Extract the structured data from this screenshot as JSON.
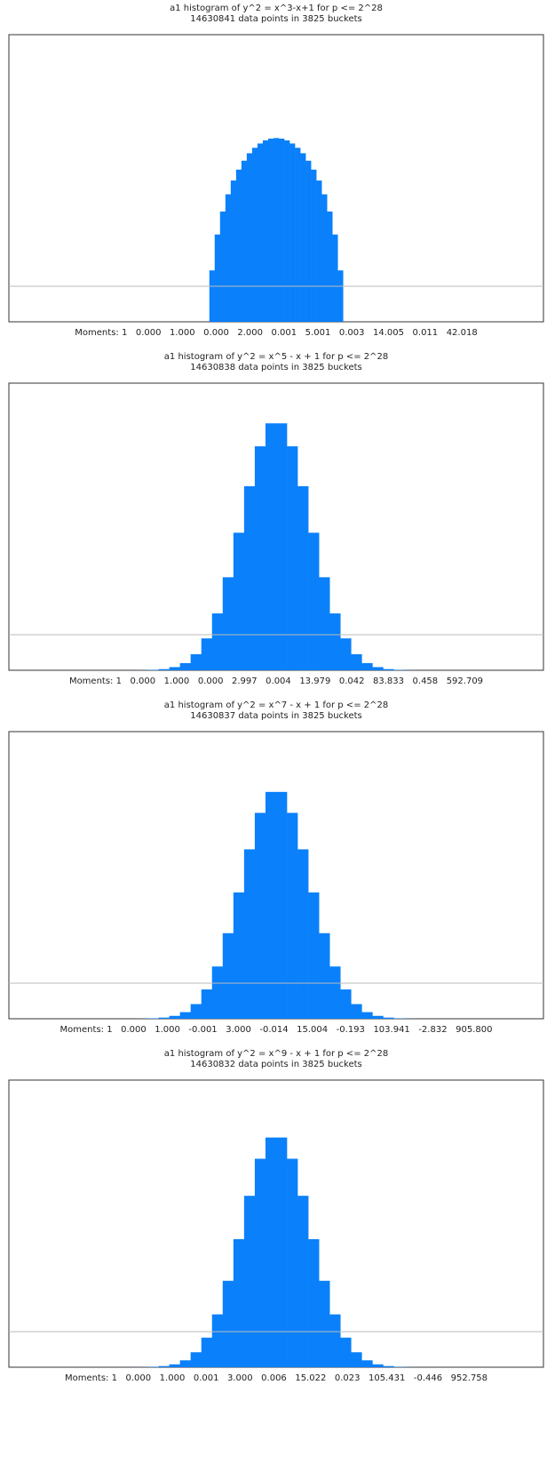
{
  "chart_data": [
    {
      "type": "histogram",
      "title": "a1 histogram of y^2 = x^3-x+1 for p <= 2^28",
      "subtitle": "14630841 data points in 3825 buckets",
      "moments": "Moments: 1   0.000   1.000   0.000   2.000   0.001   5.001   0.003   14.005   0.011   42.018",
      "bins": [
        37.5,
        38.5,
        39.5,
        40.5,
        41.5,
        42.5,
        43.5,
        44.5,
        45.5,
        46.5,
        47.5,
        48.5,
        49.5,
        50.5,
        51.5,
        52.5,
        53.5,
        54.5,
        55.5,
        56.5,
        57.5,
        58.5,
        59.5,
        60.5,
        61.5,
        62.5
      ],
      "values": [
        17.9,
        30.4,
        38.4,
        44.4,
        49.2,
        53.0,
        56.1,
        58.7,
        60.6,
        62.1,
        63.2,
        63.8,
        64,
        63.8,
        63.2,
        62.1,
        60.6,
        58.7,
        56.1,
        53.0,
        49.2,
        44.4,
        38.4,
        30.4,
        17.9
      ],
      "color": "#0a80fb",
      "xlim": [
        0,
        100
      ],
      "ylim": [
        0,
        100
      ],
      "hline": 12.4
    },
    {
      "type": "histogram",
      "title": "a1 histogram of y^2 = x^5 - x + 1 for p <= 2^28",
      "subtitle": "14630838 data points in 3825 buckets",
      "moments": "Moments: 1   0.000   1.000   0.000   2.997   0.004   13.979   0.042   83.833   0.458   592.709",
      "bins": [
        24,
        26,
        28,
        30,
        32,
        34,
        36,
        38,
        40,
        42,
        44,
        46,
        48,
        50,
        52,
        54,
        56,
        58,
        60,
        62,
        64,
        66,
        68,
        70,
        72,
        74,
        76
      ],
      "values": [
        0.04,
        0.14,
        0.4,
        1.1,
        2.5,
        5.6,
        11.1,
        19.8,
        32.4,
        47.9,
        64.1,
        78,
        86,
        86,
        78,
        64.1,
        47.9,
        32.4,
        19.8,
        11.1,
        5.6,
        2.5,
        1.1,
        0.4,
        0.14,
        0.04
      ],
      "color": "#0a80fb",
      "xlim": [
        0,
        100
      ],
      "ylim": [
        0,
        100
      ],
      "hline": 12.4
    },
    {
      "type": "histogram",
      "title": "a1 histogram of y^2 = x^7 - x + 1 for p <= 2^28",
      "subtitle": "14630837 data points in 3825 buckets",
      "moments": "Moments: 1   0.000   1.000   -0.001   3.000   -0.014   15.004   -0.193   103.941   -2.832   905.800",
      "bins": [
        24,
        26,
        28,
        30,
        32,
        34,
        36,
        38,
        40,
        42,
        44,
        46,
        48,
        50,
        52,
        54,
        56,
        58,
        60,
        62,
        64,
        66,
        68,
        70,
        72,
        74,
        76
      ],
      "values": [
        0.04,
        0.13,
        0.4,
        1.0,
        2.3,
        5.1,
        10.2,
        18.2,
        29.8,
        44.0,
        59.0,
        71.7,
        79,
        79,
        71.7,
        59.0,
        44.0,
        29.8,
        18.2,
        10.2,
        5.1,
        2.3,
        1.0,
        0.4,
        0.13,
        0.04
      ],
      "color": "#0a80fb",
      "xlim": [
        0,
        100
      ],
      "ylim": [
        0,
        100
      ],
      "hline": 12.4
    },
    {
      "type": "histogram",
      "title": "a1 histogram of y^2 = x^9 - x + 1 for p <= 2^28",
      "subtitle": "14630832 data points in 3825 buckets",
      "moments": "Moments: 1   0.000   1.000   0.001   3.000   0.006   15.022   0.023   105.431   -0.446   952.758",
      "bins": [
        24,
        26,
        28,
        30,
        32,
        34,
        36,
        38,
        40,
        42,
        44,
        46,
        48,
        50,
        52,
        54,
        56,
        58,
        60,
        62,
        64,
        66,
        68,
        70,
        72,
        74,
        76
      ],
      "values": [
        0.04,
        0.13,
        0.4,
        1.0,
        2.4,
        5.2,
        10.3,
        18.4,
        30.1,
        44.6,
        59.7,
        72.6,
        80,
        80,
        72.6,
        59.7,
        44.6,
        30.1,
        18.4,
        10.3,
        5.2,
        2.4,
        1.0,
        0.4,
        0.13,
        0.04
      ],
      "color": "#0a80fb",
      "xlim": [
        0,
        100
      ],
      "ylim": [
        0,
        100
      ],
      "hline": 12.4
    }
  ]
}
